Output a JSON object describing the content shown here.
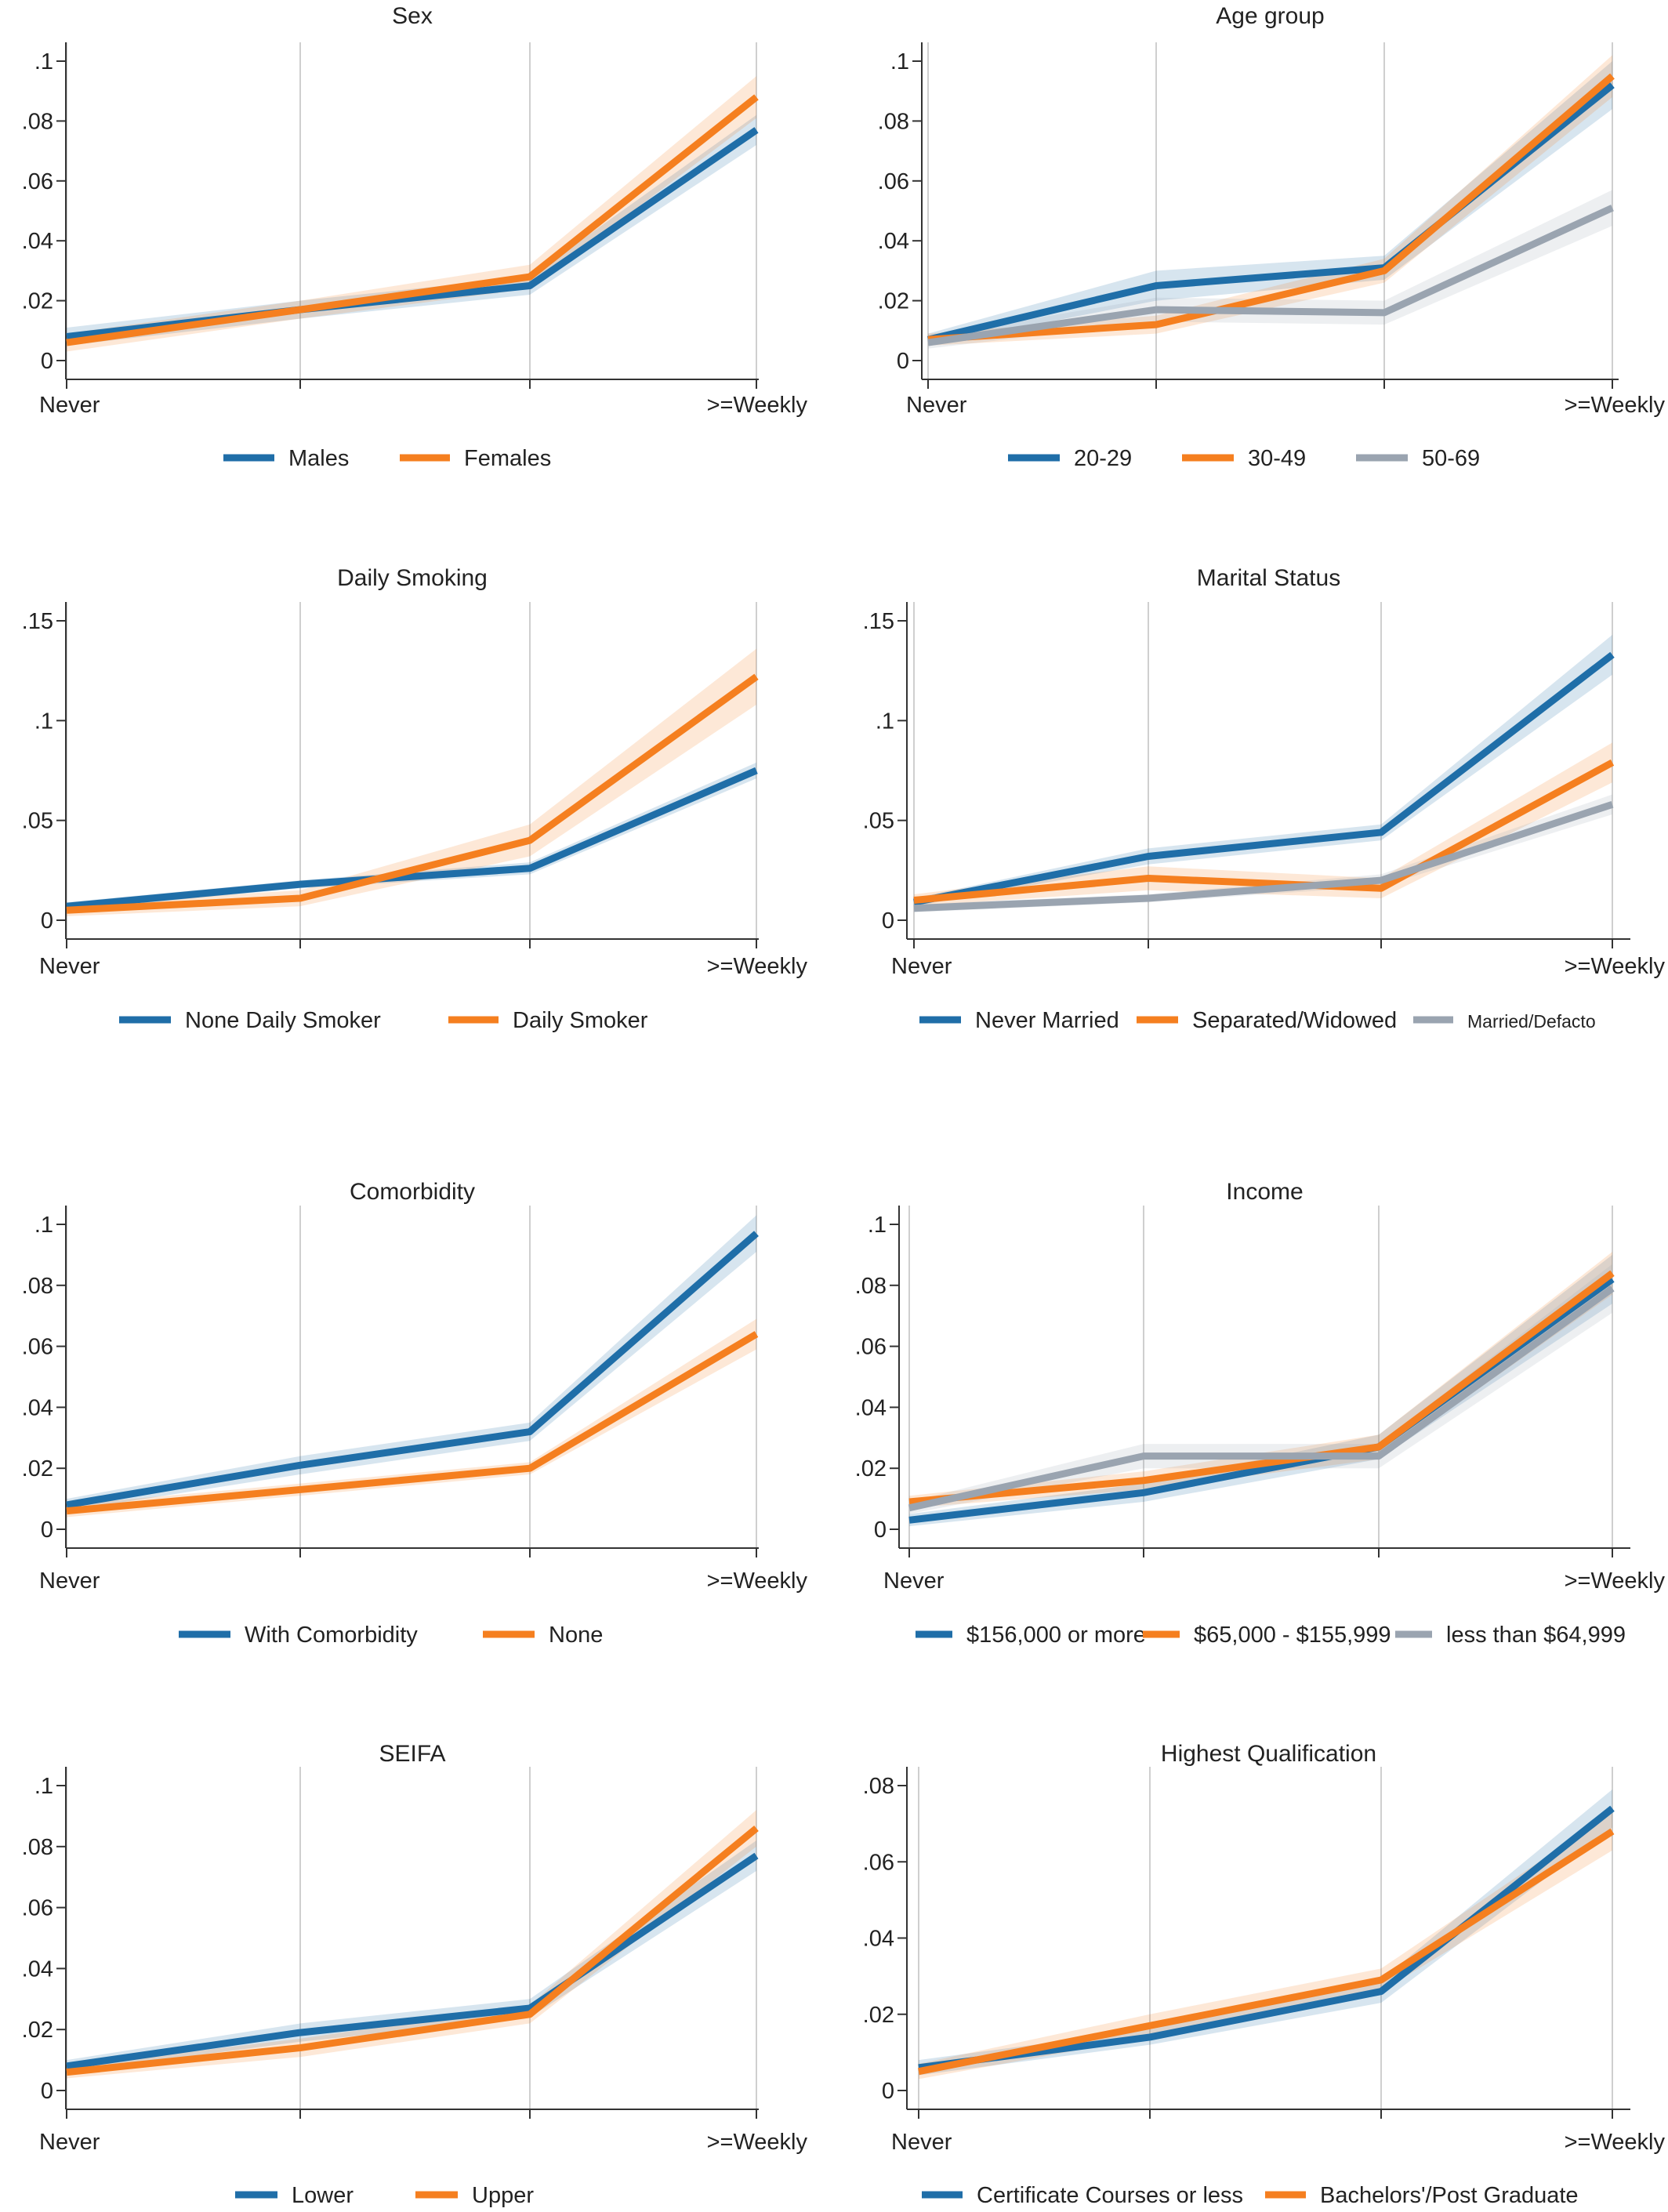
{
  "colors": {
    "blue": "#1f6ea8",
    "orange": "#f57f1f",
    "gray": "#9aa4b0",
    "axis": "#333333",
    "grid": "#cfcfcf"
  },
  "chart_data": [
    {
      "type": "line",
      "title": "Sex",
      "x": [
        "Never",
        "",
        "",
        ">=Weekly"
      ],
      "ylim": [
        0,
        0.1
      ],
      "yticks": [
        0,
        0.02,
        0.04,
        0.06,
        0.08,
        0.1
      ],
      "ytick_labels": [
        "0",
        ".02",
        ".04",
        ".06",
        ".08",
        ".1"
      ],
      "grid": true,
      "legend_position": "bottom",
      "ci_band": true,
      "series": [
        {
          "name": "Males",
          "color": "#1f6ea8",
          "values": [
            0.008,
            0.017,
            0.025,
            0.077
          ],
          "ci": [
            0.003,
            0.003,
            0.003,
            0.005
          ]
        },
        {
          "name": "Females",
          "color": "#f57f1f",
          "values": [
            0.006,
            0.017,
            0.028,
            0.088
          ],
          "ci": [
            0.003,
            0.003,
            0.004,
            0.007
          ]
        }
      ]
    },
    {
      "type": "line",
      "title": "Age group",
      "x": [
        "Never",
        "",
        "",
        ">=Weekly"
      ],
      "ylim": [
        0,
        0.1
      ],
      "yticks": [
        0,
        0.02,
        0.04,
        0.06,
        0.08,
        0.1
      ],
      "ytick_labels": [
        "0",
        ".02",
        ".04",
        ".06",
        ".08",
        ".1"
      ],
      "grid": true,
      "legend_position": "bottom",
      "ci_band": true,
      "series": [
        {
          "name": "20-29",
          "color": "#1f6ea8",
          "values": [
            0.007,
            0.025,
            0.031,
            0.092
          ],
          "ci": [
            0.002,
            0.005,
            0.004,
            0.008
          ]
        },
        {
          "name": "30-49",
          "color": "#f57f1f",
          "values": [
            0.007,
            0.012,
            0.03,
            0.095
          ],
          "ci": [
            0.002,
            0.003,
            0.004,
            0.007
          ]
        },
        {
          "name": "50-69",
          "color": "#9aa4b0",
          "values": [
            0.006,
            0.017,
            0.016,
            0.051
          ],
          "ci": [
            0.002,
            0.004,
            0.004,
            0.006
          ]
        }
      ]
    },
    {
      "type": "line",
      "title": "Daily Smoking",
      "x": [
        "Never",
        "",
        "",
        ">=Weekly"
      ],
      "ylim": [
        0,
        0.15
      ],
      "yticks": [
        0,
        0.05,
        0.1,
        0.15
      ],
      "ytick_labels": [
        "0",
        ".05",
        ".1",
        ".15"
      ],
      "grid": true,
      "legend_position": "bottom",
      "ci_band": true,
      "series": [
        {
          "name": "None Daily Smoker",
          "color": "#1f6ea8",
          "values": [
            0.007,
            0.018,
            0.026,
            0.075
          ],
          "ci": [
            0.002,
            0.002,
            0.003,
            0.004
          ]
        },
        {
          "name": "Daily Smoker",
          "color": "#f57f1f",
          "values": [
            0.005,
            0.011,
            0.04,
            0.122
          ],
          "ci": [
            0.003,
            0.004,
            0.008,
            0.014
          ]
        }
      ]
    },
    {
      "type": "line",
      "title": "Marital Status",
      "x": [
        "Never",
        "",
        "",
        ">=Weekly"
      ],
      "ylim": [
        0,
        0.15
      ],
      "yticks": [
        0,
        0.05,
        0.1,
        0.15
      ],
      "ytick_labels": [
        "0",
        ".05",
        ".1",
        ".15"
      ],
      "grid": true,
      "legend_position": "bottom",
      "ci_band": true,
      "series": [
        {
          "name": "Never Married",
          "color": "#1f6ea8",
          "values": [
            0.009,
            0.032,
            0.044,
            0.133
          ],
          "ci": [
            0.002,
            0.004,
            0.004,
            0.01
          ]
        },
        {
          "name": "Separated/Widowed",
          "color": "#f57f1f",
          "values": [
            0.01,
            0.021,
            0.016,
            0.079
          ],
          "ci": [
            0.003,
            0.006,
            0.005,
            0.01
          ]
        },
        {
          "name": "Married/Defacto",
          "color": "#9aa4b0",
          "values": [
            0.006,
            0.011,
            0.02,
            0.058
          ],
          "ci": [
            0.002,
            0.002,
            0.003,
            0.005
          ]
        }
      ]
    },
    {
      "type": "line",
      "title": "Comorbidity",
      "x": [
        "Never",
        "",
        "",
        ">=Weekly"
      ],
      "ylim": [
        0,
        0.1
      ],
      "yticks": [
        0,
        0.02,
        0.04,
        0.06,
        0.08,
        0.1
      ],
      "ytick_labels": [
        "0",
        ".02",
        ".04",
        ".06",
        ".08",
        ".1"
      ],
      "grid": true,
      "legend_position": "bottom",
      "ci_band": true,
      "series": [
        {
          "name": "With Comorbidity",
          "color": "#1f6ea8",
          "values": [
            0.008,
            0.021,
            0.032,
            0.097
          ],
          "ci": [
            0.002,
            0.003,
            0.003,
            0.006
          ]
        },
        {
          "name": "None",
          "color": "#f57f1f",
          "values": [
            0.006,
            0.013,
            0.02,
            0.064
          ],
          "ci": [
            0.002,
            0.002,
            0.002,
            0.005
          ]
        }
      ]
    },
    {
      "type": "line",
      "title": "Income",
      "x": [
        "Never",
        "",
        "",
        ">=Weekly"
      ],
      "ylim": [
        0,
        0.1
      ],
      "yticks": [
        0,
        0.02,
        0.04,
        0.06,
        0.08,
        0.1
      ],
      "ytick_labels": [
        "0",
        ".02",
        ".04",
        ".06",
        ".08",
        ".1"
      ],
      "grid": true,
      "legend_position": "bottom",
      "ci_band": true,
      "series": [
        {
          "name": "$156,000 or more",
          "color": "#1f6ea8",
          "values": [
            0.003,
            0.012,
            0.027,
            0.082
          ],
          "ci": [
            0.002,
            0.003,
            0.004,
            0.008
          ]
        },
        {
          "name": "$65,000 - $155,999",
          "color": "#f57f1f",
          "values": [
            0.009,
            0.016,
            0.027,
            0.084
          ],
          "ci": [
            0.002,
            0.003,
            0.004,
            0.007
          ]
        },
        {
          "name": "less than $64,999",
          "color": "#9aa4b0",
          "values": [
            0.007,
            0.024,
            0.024,
            0.079
          ],
          "ci": [
            0.002,
            0.004,
            0.004,
            0.008
          ]
        }
      ]
    },
    {
      "type": "line",
      "title": "SEIFA",
      "x": [
        "Never",
        "",
        "",
        ">=Weekly"
      ],
      "ylim": [
        0,
        0.1
      ],
      "yticks": [
        0,
        0.02,
        0.04,
        0.06,
        0.08,
        0.1
      ],
      "ytick_labels": [
        "0",
        ".02",
        ".04",
        ".06",
        ".08",
        ".1"
      ],
      "grid": true,
      "legend_position": "bottom",
      "ci_band": true,
      "series": [
        {
          "name": "Lower",
          "color": "#1f6ea8",
          "values": [
            0.008,
            0.019,
            0.027,
            0.077
          ],
          "ci": [
            0.002,
            0.003,
            0.003,
            0.005
          ]
        },
        {
          "name": "Upper",
          "color": "#f57f1f",
          "values": [
            0.006,
            0.014,
            0.025,
            0.086
          ],
          "ci": [
            0.002,
            0.003,
            0.003,
            0.006
          ]
        }
      ]
    },
    {
      "type": "line",
      "title": "Highest Qualification",
      "x": [
        "Never",
        "",
        "",
        ">=Weekly"
      ],
      "ylim": [
        0,
        0.08
      ],
      "yticks": [
        0,
        0.02,
        0.04,
        0.06,
        0.08
      ],
      "ytick_labels": [
        "0",
        ".02",
        ".04",
        ".06",
        ".08"
      ],
      "grid": true,
      "legend_position": "bottom",
      "ci_band": true,
      "series": [
        {
          "name": "Certificate Courses or less",
          "color": "#1f6ea8",
          "values": [
            0.006,
            0.014,
            0.026,
            0.074
          ],
          "ci": [
            0.002,
            0.002,
            0.003,
            0.005
          ]
        },
        {
          "name": "Bachelors'/Post Graduate",
          "color": "#f57f1f",
          "values": [
            0.005,
            0.017,
            0.029,
            0.068
          ],
          "ci": [
            0.002,
            0.003,
            0.003,
            0.005
          ]
        }
      ]
    }
  ]
}
